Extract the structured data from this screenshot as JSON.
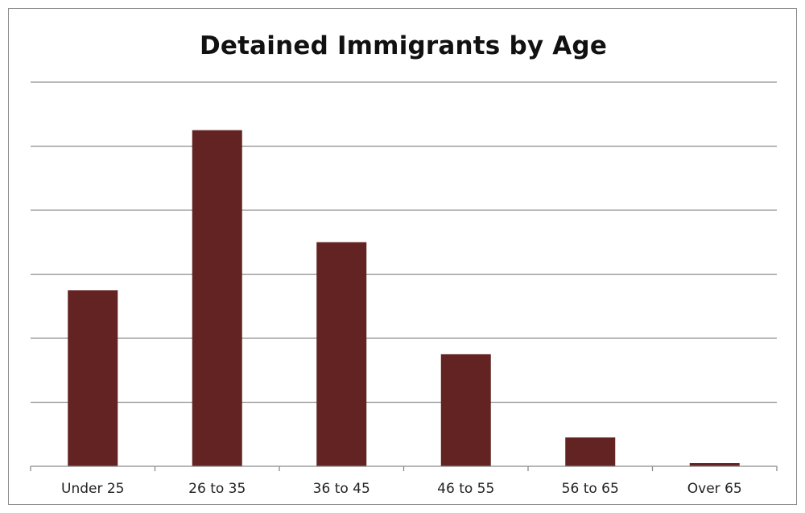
{
  "chart_data": {
    "type": "bar",
    "title": "Detained Immigrants by Age",
    "categories": [
      "Under 25",
      "26 to 35",
      "36 to 45",
      "46 to 55",
      "56 to 65",
      "Over 65"
    ],
    "values": [
      2.75,
      5.25,
      3.5,
      1.75,
      0.45,
      0.05
    ],
    "ylim": [
      0,
      6
    ],
    "grid": true,
    "bar_color": "#632323",
    "xlabel": "",
    "ylabel": ""
  }
}
